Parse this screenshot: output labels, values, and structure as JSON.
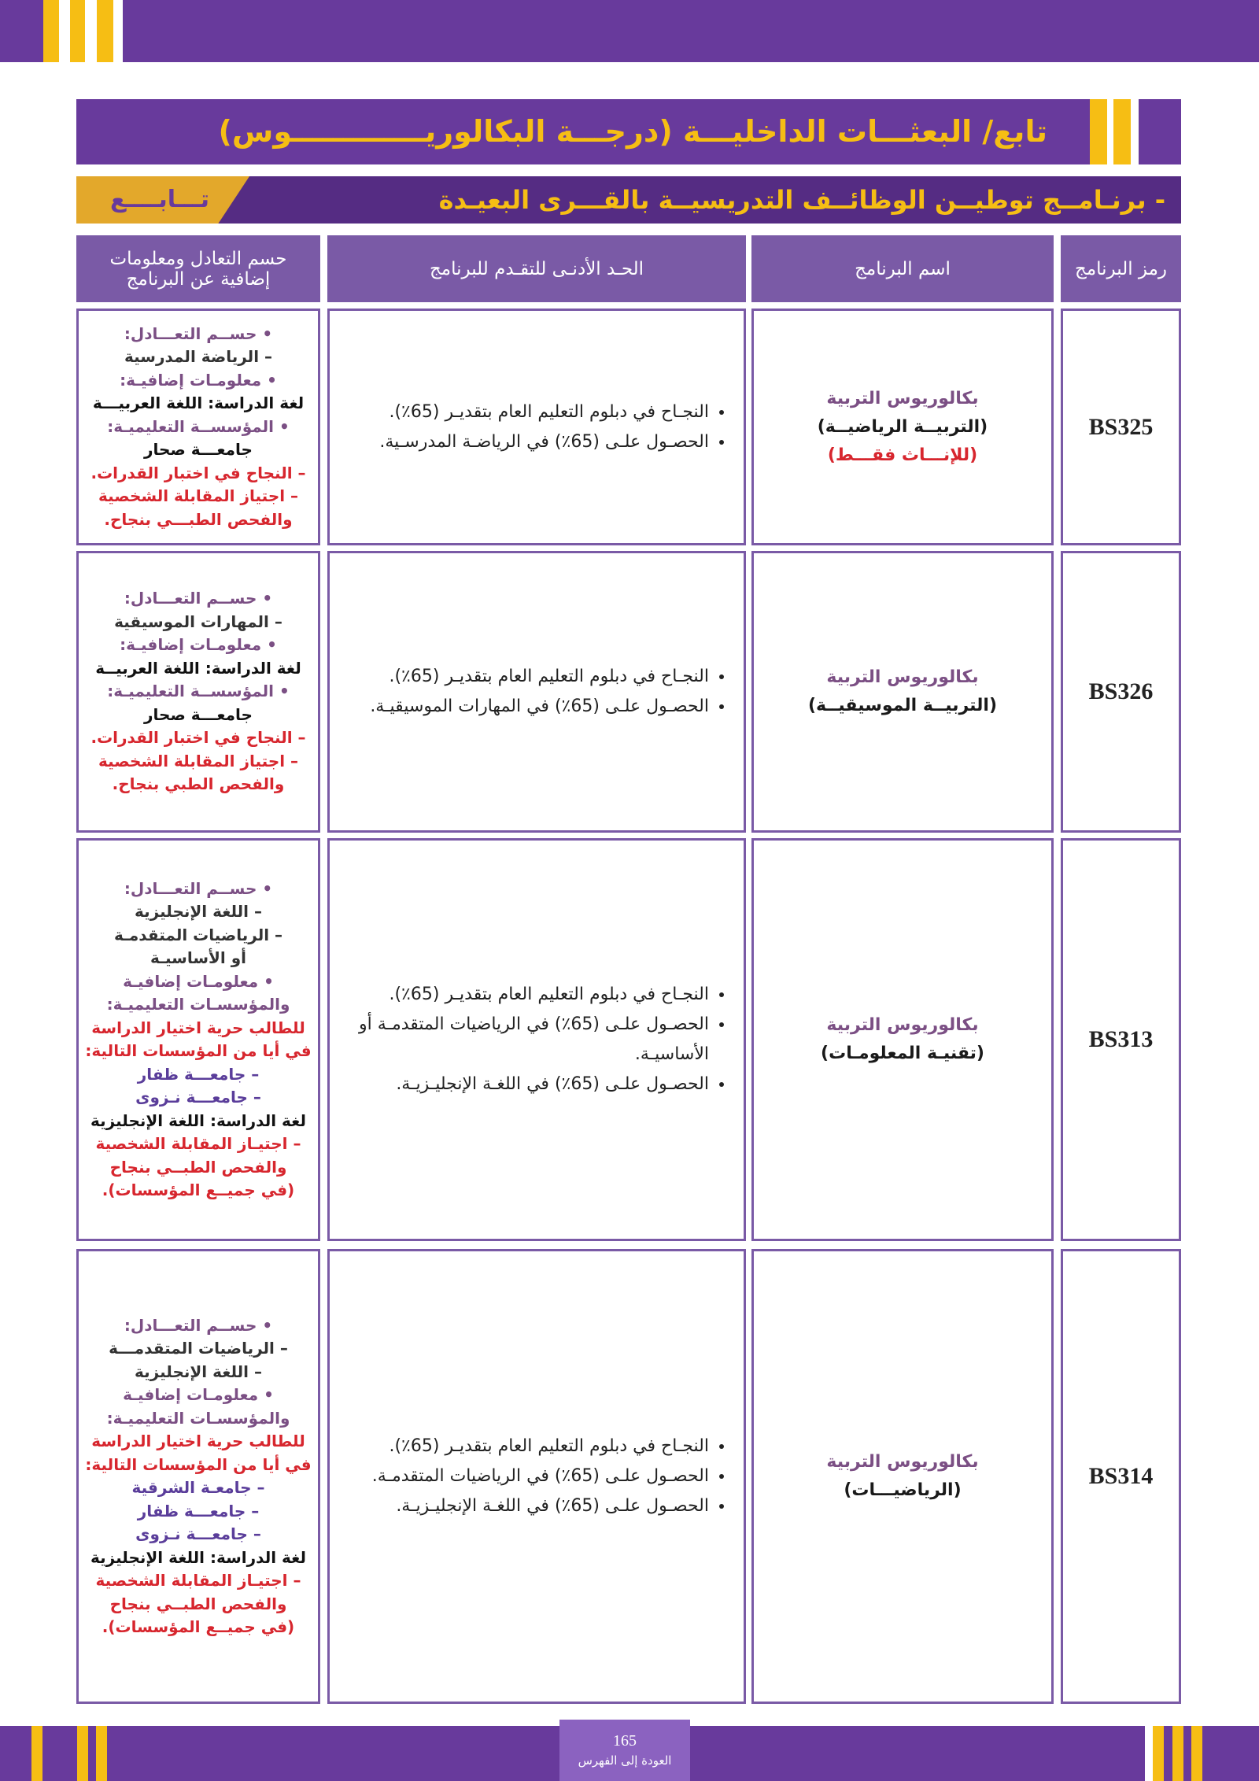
{
  "header": {
    "title": "تابع/ البعثـــات الداخليـــة (درجـــة البكالوريـــــــــــــوس)",
    "subtitle": "- برنـامــج توطيــن الوظائــف التدريسيــة بالقـــرى البعيـدة",
    "continued": "تـــابــــع"
  },
  "table": {
    "columns": [
      "رمز البرنامج",
      "اسم البرنامج",
      "الحـد الأدنـى للتقـدم للبرنامج",
      "حسم التعادل ومعلومات إضافية عن البرنامج"
    ],
    "rows": [
      {
        "code": "BS325",
        "name": [
          {
            "text": "بكالوريوس التربية",
            "color": "#7b4f84"
          },
          {
            "text": "(التربيــة الرياضيــة)",
            "color": "#1a1a1a"
          },
          {
            "text": "(للإنـــاث فقـــط)",
            "color": "#d7262e"
          }
        ],
        "requirements": [
          "النجـاح في دبلوم التعليم العام بتقديـر (65٪).",
          "الحصـول علـى (65٪) في الرياضـة المدرسـية."
        ],
        "info": [
          {
            "text": "• حســم التعـــادل:",
            "color": "#7b4f84"
          },
          {
            "text": "– الرياضة المدرسية",
            "color": "#333333"
          },
          {
            "text": "• معلومـات إضافيـة:",
            "color": "#7b4f84"
          },
          {
            "text": "لغة الدراسة: اللغة العربيـــة",
            "color": "#111111"
          },
          {
            "text": "• المؤسســة التعليميـة:",
            "color": "#7b4f84"
          },
          {
            "text": "جامعـــة صحار",
            "color": "#111111"
          },
          {
            "text": "– النجاح في اختبار القدرات.",
            "color": "#d7262e"
          },
          {
            "text": "– اجتياز المقابلة الشخصية",
            "color": "#d7262e"
          },
          {
            "text": "والفحص الطبـــي بنجاح.",
            "color": "#d7262e"
          }
        ]
      },
      {
        "code": "BS326",
        "name": [
          {
            "text": "بكالوريوس التربية",
            "color": "#7b4f84"
          },
          {
            "text": "(التربيــة الموسيقيــة)",
            "color": "#1a1a1a"
          }
        ],
        "requirements": [
          "النجـاح في دبلوم التعليم العام بتقديـر (65٪).",
          "الحصـول علـى (65٪) في المهارات الموسيقيـة."
        ],
        "info": [
          {
            "text": "• حســم التعـــادل:",
            "color": "#7b4f84"
          },
          {
            "text": "– المهارات الموسيقية",
            "color": "#333333"
          },
          {
            "text": "• معلومـات إضافيـة:",
            "color": "#7b4f84"
          },
          {
            "text": "لغة الدراسة: اللغة العربيــة",
            "color": "#111111"
          },
          {
            "text": "• المؤسســة التعليميـة:",
            "color": "#7b4f84"
          },
          {
            "text": "جامعـــة صحار",
            "color": "#111111"
          },
          {
            "text": "– النجاح في اختبار القدرات.",
            "color": "#d7262e"
          },
          {
            "text": "– اجتياز المقابلة الشخصية",
            "color": "#d7262e"
          },
          {
            "text": "والفحص الطبي بنجاح.",
            "color": "#d7262e"
          }
        ]
      },
      {
        "code": "BS313",
        "name": [
          {
            "text": "بكالوريوس التربية",
            "color": "#7b4f84"
          },
          {
            "text": "(تقنيـة المعلومـات)",
            "color": "#1a1a1a"
          }
        ],
        "requirements": [
          "النجـاح في دبلوم التعليم العام بتقديـر (65٪).",
          "الحصـول علـى (65٪) في الرياضيات المتقدمـة أو الأساسيـة.",
          "الحصـول علـى (65٪) في اللغـة الإنجليـزيـة."
        ],
        "info": [
          {
            "text": "• حســم التعـــادل:",
            "color": "#7b4f84"
          },
          {
            "text": "– اللغة الإنجليزية",
            "color": "#333333"
          },
          {
            "text": "– الرياضيات المتقدمـة",
            "color": "#333333"
          },
          {
            "text": "أو الأساسيـة",
            "color": "#333333"
          },
          {
            "text": "• معلومـات إضافيـة",
            "color": "#7b4f84"
          },
          {
            "text": "والمؤسسـات التعليميـة:",
            "color": "#7b4f84"
          },
          {
            "text": "للطالب حرية اختيار الدراسة",
            "color": "#d7262e"
          },
          {
            "text": "في أيا من المؤسسات التالية:",
            "color": "#d7262e"
          },
          {
            "text": "– جامعـــة ظفار",
            "color": "#5a3d9a"
          },
          {
            "text": "– جامعـــة نـزوى",
            "color": "#5a3d9a"
          },
          {
            "text": "لغة الدراسة: اللغة الإنجليزية",
            "color": "#111111"
          },
          {
            "text": "– اجتيـاز المقابلة الشخصية",
            "color": "#d7262e"
          },
          {
            "text": "والفحص الطبــي بنجاح",
            "color": "#d7262e"
          },
          {
            "text": "(في جميــع المؤسسات).",
            "color": "#d7262e"
          }
        ]
      },
      {
        "code": "BS314",
        "name": [
          {
            "text": "بكالوريوس التربية",
            "color": "#7b4f84"
          },
          {
            "text": "(الرياضيـــات)",
            "color": "#1a1a1a"
          }
        ],
        "requirements": [
          "النجـاح في دبلوم التعليم العام بتقديـر (65٪).",
          "الحصـول علـى (65٪) في الرياضيات المتقدمـة.",
          "الحصـول علـى (65٪) في اللغـة الإنجليـزيـة."
        ],
        "info": [
          {
            "text": "• حســم التعـــادل:",
            "color": "#7b4f84"
          },
          {
            "text": "– الرياضيات المتقدمـــة",
            "color": "#333333"
          },
          {
            "text": "– اللغة الإنجليزية",
            "color": "#333333"
          },
          {
            "text": "• معلومـات إضافيـة",
            "color": "#7b4f84"
          },
          {
            "text": "والمؤسسـات التعليميـة:",
            "color": "#7b4f84"
          },
          {
            "text": "للطالب حرية اختيار الدراسة",
            "color": "#d7262e"
          },
          {
            "text": "في أيا من المؤسسات التالية:",
            "color": "#d7262e"
          },
          {
            "text": "– جامعـة الشرقية",
            "color": "#5a3d9a"
          },
          {
            "text": "– جامعـــة ظفار",
            "color": "#5a3d9a"
          },
          {
            "text": "– جامعـــة نـزوى",
            "color": "#5a3d9a"
          },
          {
            "text": "لغة الدراسة: اللغة الإنجليزية",
            "color": "#111111"
          },
          {
            "text": "– اجتيـاز المقابلة الشخصية",
            "color": "#d7262e"
          },
          {
            "text": "والفحص الطبــي بنجاح",
            "color": "#d7262e"
          },
          {
            "text": "(في جميــع المؤسسات).",
            "color": "#d7262e"
          }
        ]
      }
    ]
  },
  "footer": {
    "page": "165",
    "back_link": "العودة إلى الفهرس"
  }
}
